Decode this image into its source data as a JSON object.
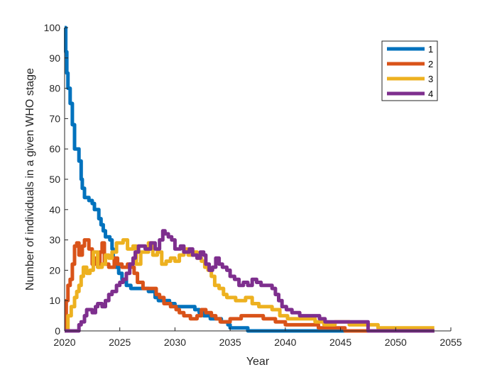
{
  "chart_data": {
    "type": "line",
    "step": true,
    "xlabel": "Year",
    "ylabel": "Number of individuals in a given WHO stage",
    "xlim": [
      2020,
      2055
    ],
    "ylim": [
      0,
      100
    ],
    "xticks": [
      2020,
      2025,
      2030,
      2035,
      2040,
      2045,
      2050,
      2055
    ],
    "yticks": [
      0,
      10,
      20,
      30,
      40,
      50,
      60,
      70,
      80,
      90,
      100
    ],
    "grid": false,
    "legend_position": "top-right",
    "series": [
      {
        "name": "1",
        "color": "#0072BD",
        "points": [
          [
            2020.0,
            100
          ],
          [
            2020.1,
            92
          ],
          [
            2020.2,
            85
          ],
          [
            2020.3,
            80
          ],
          [
            2020.5,
            75
          ],
          [
            2020.7,
            68
          ],
          [
            2020.9,
            60
          ],
          [
            2021.3,
            56
          ],
          [
            2021.5,
            50
          ],
          [
            2021.6,
            47
          ],
          [
            2021.8,
            44
          ],
          [
            2022.2,
            43
          ],
          [
            2022.5,
            42
          ],
          [
            2022.7,
            40
          ],
          [
            2023.1,
            37
          ],
          [
            2023.3,
            35
          ],
          [
            2023.5,
            33
          ],
          [
            2023.7,
            31
          ],
          [
            2024.1,
            30
          ],
          [
            2024.3,
            27
          ],
          [
            2024.4,
            24
          ],
          [
            2024.6,
            21
          ],
          [
            2024.9,
            19
          ],
          [
            2025.2,
            17
          ],
          [
            2025.6,
            15
          ],
          [
            2026.0,
            14
          ],
          [
            2027.3,
            14
          ],
          [
            2027.6,
            13
          ],
          [
            2028.2,
            11
          ],
          [
            2028.5,
            10
          ],
          [
            2029.5,
            9
          ],
          [
            2030.0,
            8
          ],
          [
            2031.3,
            8
          ],
          [
            2031.8,
            7
          ],
          [
            2032.2,
            6
          ],
          [
            2032.6,
            5
          ],
          [
            2033.2,
            4
          ],
          [
            2034.2,
            3
          ],
          [
            2034.8,
            2
          ],
          [
            2035.0,
            1
          ],
          [
            2036.4,
            1
          ],
          [
            2036.6,
            0
          ],
          [
            2053.5,
            0
          ]
        ]
      },
      {
        "name": "2",
        "color": "#D95319",
        "points": [
          [
            2020.0,
            0
          ],
          [
            2020.15,
            10
          ],
          [
            2020.3,
            15
          ],
          [
            2020.5,
            17
          ],
          [
            2020.7,
            22
          ],
          [
            2020.9,
            28
          ],
          [
            2021.1,
            29
          ],
          [
            2021.3,
            25
          ],
          [
            2021.6,
            28
          ],
          [
            2021.8,
            30
          ],
          [
            2022.2,
            27
          ],
          [
            2022.5,
            22
          ],
          [
            2022.8,
            24
          ],
          [
            2023.0,
            21
          ],
          [
            2023.2,
            26
          ],
          [
            2023.4,
            29
          ],
          [
            2023.6,
            22
          ],
          [
            2024.0,
            21
          ],
          [
            2024.5,
            24
          ],
          [
            2024.8,
            22
          ],
          [
            2025.2,
            21
          ],
          [
            2025.7,
            22
          ],
          [
            2026.0,
            21
          ],
          [
            2026.3,
            19
          ],
          [
            2026.6,
            16
          ],
          [
            2027.1,
            14
          ],
          [
            2027.6,
            14
          ],
          [
            2028.3,
            12
          ],
          [
            2028.6,
            11
          ],
          [
            2029.0,
            9
          ],
          [
            2029.6,
            8
          ],
          [
            2030.1,
            7
          ],
          [
            2030.4,
            6
          ],
          [
            2030.8,
            5
          ],
          [
            2031.4,
            4
          ],
          [
            2032.0,
            5
          ],
          [
            2032.4,
            7
          ],
          [
            2032.8,
            6
          ],
          [
            2033.3,
            5
          ],
          [
            2033.7,
            4
          ],
          [
            2034.1,
            3
          ],
          [
            2035.0,
            4
          ],
          [
            2036.0,
            5
          ],
          [
            2037.0,
            5
          ],
          [
            2038.0,
            4
          ],
          [
            2039.1,
            3
          ],
          [
            2040.0,
            2
          ],
          [
            2042.3,
            2
          ],
          [
            2043.0,
            1
          ],
          [
            2045.0,
            1
          ],
          [
            2045.4,
            0
          ],
          [
            2053.5,
            0
          ]
        ]
      },
      {
        "name": "3",
        "color": "#EDB120",
        "points": [
          [
            2020.0,
            0
          ],
          [
            2020.3,
            5
          ],
          [
            2020.6,
            8
          ],
          [
            2020.9,
            11
          ],
          [
            2021.1,
            13
          ],
          [
            2021.3,
            15
          ],
          [
            2021.5,
            18
          ],
          [
            2021.7,
            21
          ],
          [
            2022.0,
            19
          ],
          [
            2022.3,
            20
          ],
          [
            2022.6,
            26
          ],
          [
            2023.0,
            21
          ],
          [
            2023.4,
            22
          ],
          [
            2023.7,
            25
          ],
          [
            2024.0,
            24
          ],
          [
            2024.3,
            26
          ],
          [
            2024.7,
            29
          ],
          [
            2025.0,
            29
          ],
          [
            2025.3,
            30
          ],
          [
            2025.7,
            27
          ],
          [
            2026.2,
            28
          ],
          [
            2026.5,
            22
          ],
          [
            2026.9,
            26
          ],
          [
            2027.3,
            26
          ],
          [
            2027.6,
            29
          ],
          [
            2028.0,
            25
          ],
          [
            2028.4,
            26
          ],
          [
            2028.8,
            22
          ],
          [
            2029.2,
            23
          ],
          [
            2029.6,
            24
          ],
          [
            2030.0,
            23
          ],
          [
            2030.4,
            25
          ],
          [
            2030.8,
            27
          ],
          [
            2031.2,
            25
          ],
          [
            2031.6,
            26
          ],
          [
            2032.0,
            24
          ],
          [
            2032.4,
            23
          ],
          [
            2032.7,
            21
          ],
          [
            2033.0,
            20
          ],
          [
            2033.3,
            18
          ],
          [
            2033.6,
            15
          ],
          [
            2034.0,
            14
          ],
          [
            2034.4,
            12
          ],
          [
            2034.7,
            11
          ],
          [
            2035.5,
            10
          ],
          [
            2036.4,
            11
          ],
          [
            2037.0,
            9
          ],
          [
            2037.6,
            8
          ],
          [
            2038.8,
            7
          ],
          [
            2039.5,
            5
          ],
          [
            2040.2,
            4
          ],
          [
            2042.4,
            4
          ],
          [
            2042.7,
            3
          ],
          [
            2043.5,
            2
          ],
          [
            2044.5,
            3
          ],
          [
            2045.8,
            2
          ],
          [
            2048.1,
            2
          ],
          [
            2048.4,
            1
          ],
          [
            2053.5,
            1
          ]
        ]
      },
      {
        "name": "4",
        "color": "#7E2F8E",
        "points": [
          [
            2020.0,
            0
          ],
          [
            2021.1,
            0
          ],
          [
            2021.3,
            2
          ],
          [
            2021.5,
            3
          ],
          [
            2021.8,
            5
          ],
          [
            2022.0,
            7
          ],
          [
            2022.5,
            6
          ],
          [
            2022.8,
            8
          ],
          [
            2023.0,
            9
          ],
          [
            2023.4,
            8
          ],
          [
            2023.7,
            10
          ],
          [
            2024.0,
            12
          ],
          [
            2024.3,
            13
          ],
          [
            2024.7,
            15
          ],
          [
            2025.0,
            16
          ],
          [
            2025.3,
            17
          ],
          [
            2025.6,
            19
          ],
          [
            2025.9,
            22
          ],
          [
            2026.2,
            24
          ],
          [
            2026.4,
            26
          ],
          [
            2026.7,
            28
          ],
          [
            2027.3,
            27
          ],
          [
            2027.8,
            29
          ],
          [
            2028.2,
            27
          ],
          [
            2028.6,
            30
          ],
          [
            2028.9,
            33
          ],
          [
            2029.1,
            32
          ],
          [
            2029.4,
            31
          ],
          [
            2029.7,
            30
          ],
          [
            2030.0,
            27
          ],
          [
            2030.5,
            28
          ],
          [
            2030.8,
            26
          ],
          [
            2031.3,
            27
          ],
          [
            2031.6,
            25
          ],
          [
            2032.0,
            24
          ],
          [
            2032.3,
            26
          ],
          [
            2032.6,
            25
          ],
          [
            2032.8,
            22
          ],
          [
            2033.1,
            20
          ],
          [
            2033.4,
            21
          ],
          [
            2033.7,
            24
          ],
          [
            2034.0,
            22
          ],
          [
            2034.3,
            21
          ],
          [
            2034.7,
            20
          ],
          [
            2035.0,
            18
          ],
          [
            2035.4,
            17
          ],
          [
            2035.8,
            15
          ],
          [
            2036.2,
            16
          ],
          [
            2036.6,
            15
          ],
          [
            2037.0,
            17
          ],
          [
            2037.4,
            16
          ],
          [
            2037.8,
            15
          ],
          [
            2038.2,
            15
          ],
          [
            2038.8,
            14
          ],
          [
            2039.1,
            12
          ],
          [
            2039.4,
            10
          ],
          [
            2039.7,
            8
          ],
          [
            2040.1,
            7
          ],
          [
            2040.6,
            6
          ],
          [
            2041.3,
            5
          ],
          [
            2042.7,
            5
          ],
          [
            2043.1,
            4
          ],
          [
            2043.6,
            3
          ],
          [
            2047.3,
            3
          ],
          [
            2047.5,
            0
          ],
          [
            2053.5,
            0
          ]
        ]
      }
    ]
  }
}
